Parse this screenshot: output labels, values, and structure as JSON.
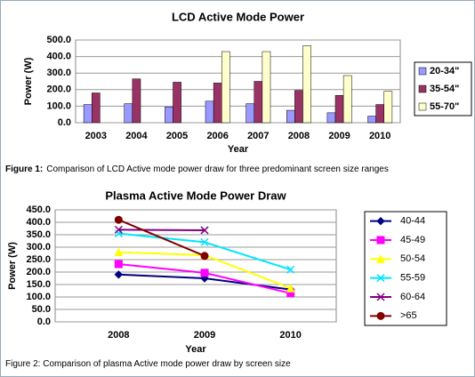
{
  "chart_data": [
    {
      "type": "bar",
      "title": "LCD Active Mode Power",
      "x_label": "Year",
      "y_label": "Power (W)",
      "categories": [
        "2003",
        "2004",
        "2005",
        "2006",
        "2007",
        "2008",
        "2009",
        "2010"
      ],
      "series": [
        {
          "name": "20-34\"",
          "color": "#9999ff",
          "values": [
            110,
            115,
            95,
            130,
            115,
            75,
            60,
            40
          ]
        },
        {
          "name": "35-54\"",
          "color": "#993366",
          "values": [
            180,
            265,
            245,
            240,
            250,
            195,
            165,
            110
          ]
        },
        {
          "name": "55-70\"",
          "color": "#ffffcc",
          "values": [
            null,
            null,
            null,
            430,
            430,
            465,
            285,
            190
          ]
        }
      ],
      "ylim": [
        0,
        500
      ],
      "yticks": [
        {
          "value": 0,
          "label": "0.0"
        },
        {
          "value": 100,
          "label": "100.0"
        },
        {
          "value": 200,
          "label": "200.0"
        },
        {
          "value": 300,
          "label": "300.0"
        },
        {
          "value": 400,
          "label": "400.0"
        },
        {
          "value": 500,
          "label": "500.0"
        }
      ],
      "grid": true,
      "legend": "right",
      "caption": {
        "label": "Figure 1:",
        "text": "Comparison of LCD Active mode power draw for three predominant screen size ranges"
      }
    },
    {
      "type": "line",
      "title": "Plasma Active Mode Power Draw",
      "x_label": "Year",
      "y_label": "Power (W)",
      "categories": [
        "2008",
        "2009",
        "2010"
      ],
      "series": [
        {
          "name": "40-44",
          "color": "#000080",
          "marker": "diamond",
          "values": [
            190,
            175,
            130
          ]
        },
        {
          "name": "45-49",
          "color": "#ff00ff",
          "marker": "square",
          "values": [
            232,
            197,
            115
          ]
        },
        {
          "name": "50-54",
          "color": "#ffff00",
          "marker": "triangle",
          "values": [
            280,
            268,
            135
          ]
        },
        {
          "name": "55-59",
          "color": "#00e5ff",
          "marker": "x",
          "values": [
            355,
            320,
            210
          ]
        },
        {
          "name": "60-64",
          "color": "#800080",
          "marker": "x",
          "values": [
            370,
            368,
            null
          ]
        },
        {
          "name": ">65",
          "color": "#800000",
          "marker": "circle",
          "values": [
            410,
            265,
            null
          ]
        }
      ],
      "ylim": [
        0,
        450
      ],
      "yticks": [
        {
          "value": 0,
          "label": "0.0"
        },
        {
          "value": 50,
          "label": "50.0"
        },
        {
          "value": 100,
          "label": "100.0"
        },
        {
          "value": 150,
          "label": "150.0"
        },
        {
          "value": 200,
          "label": "200.0"
        },
        {
          "value": 250,
          "label": "250.0"
        },
        {
          "value": 300,
          "label": "300.0"
        },
        {
          "value": 350,
          "label": "350.0"
        },
        {
          "value": 400,
          "label": "400.0"
        },
        {
          "value": 450,
          "label": "450.0"
        }
      ],
      "grid": true,
      "legend": "right",
      "caption": {
        "text": "Figure 2: Comparison of plasma Active mode power draw by screen size"
      }
    }
  ]
}
